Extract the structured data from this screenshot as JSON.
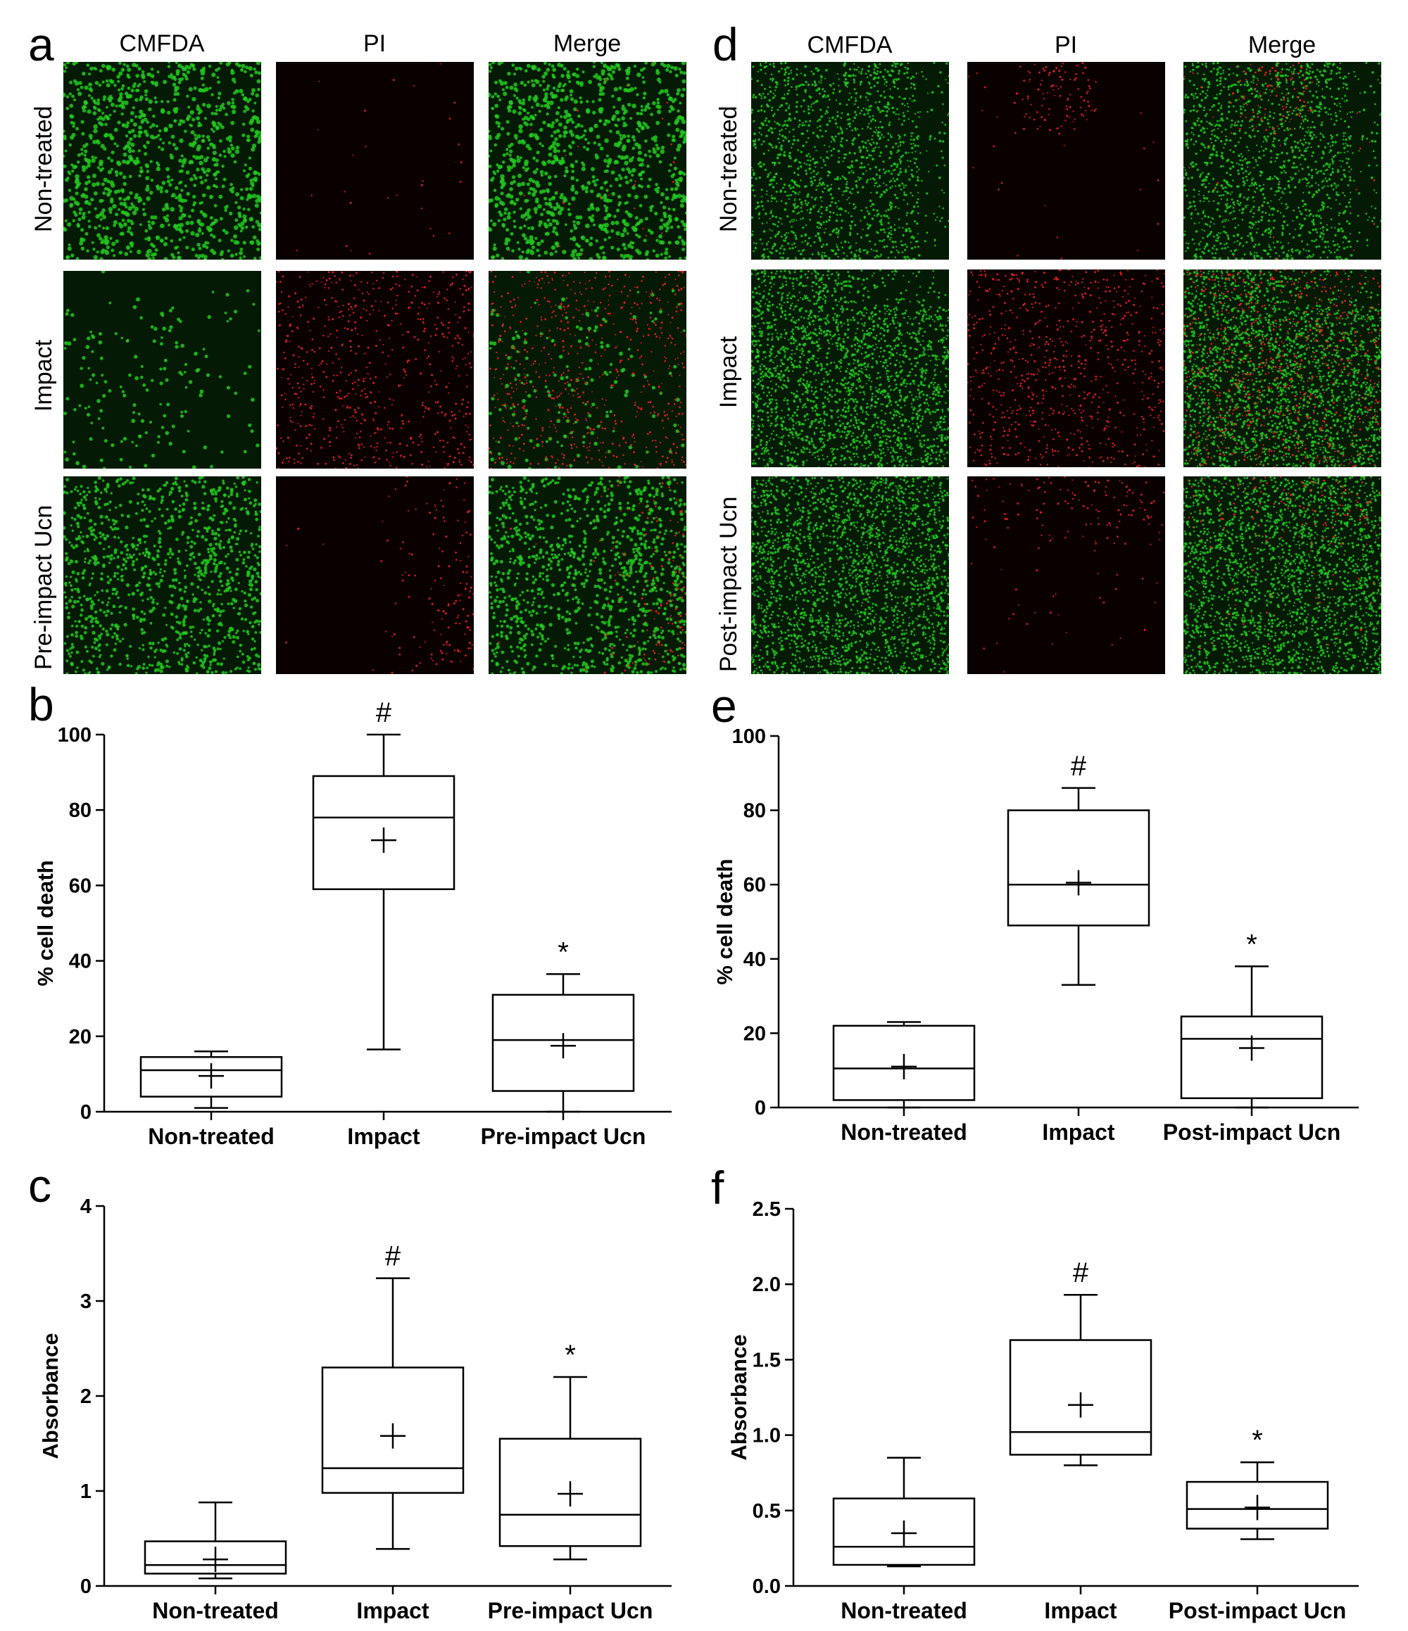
{
  "micrograph_panels": [
    {
      "letter": "a",
      "columns": [
        "CMFDA",
        "PI",
        "Merge"
      ],
      "rows": [
        "Non-treated",
        "Impact",
        "Pre-impact Ucn"
      ]
    },
    {
      "letter": "d",
      "columns": [
        "CMFDA",
        "PI",
        "Merge"
      ],
      "rows": [
        "Non-treated",
        "Impact",
        "Post-impact Ucn"
      ]
    }
  ],
  "colors": {
    "cmfda_green": "#22c81e",
    "pi_red": "#e0201e",
    "background": "#000000",
    "axis": "#000000"
  },
  "chart_data": [
    {
      "panel": "b",
      "type": "box",
      "ylabel": "% cell death",
      "ylim": [
        0,
        100
      ],
      "yticks": [
        "0",
        "20",
        "40",
        "60",
        "80",
        "100"
      ],
      "categories": [
        "Non-treated",
        "Impact",
        "Pre-impact Ucn"
      ],
      "boxes": [
        {
          "whisker_low": 1,
          "q1": 4,
          "median": 11,
          "q3": 14.5,
          "whisker_high": 16,
          "mean": 9.5,
          "sig": ""
        },
        {
          "whisker_low": 16.5,
          "q1": 59,
          "median": 78,
          "q3": 89,
          "whisker_high": 100,
          "mean": 72,
          "sig": "#"
        },
        {
          "whisker_low": 0,
          "q1": 5.5,
          "median": 19,
          "q3": 31,
          "whisker_high": 36.5,
          "mean": 17.5,
          "sig": "*"
        }
      ]
    },
    {
      "panel": "c",
      "type": "box",
      "ylabel": "Absorbance",
      "ylim": [
        0,
        4
      ],
      "yticks": [
        "0",
        "1",
        "2",
        "3",
        "4"
      ],
      "categories": [
        "Non-treated",
        "Impact",
        "Pre-impact Ucn"
      ],
      "boxes": [
        {
          "whisker_low": 0.08,
          "q1": 0.13,
          "median": 0.22,
          "q3": 0.47,
          "whisker_high": 0.88,
          "mean": 0.28,
          "sig": ""
        },
        {
          "whisker_low": 0.39,
          "q1": 0.98,
          "median": 1.24,
          "q3": 2.3,
          "whisker_high": 3.24,
          "mean": 1.58,
          "sig": "#"
        },
        {
          "whisker_low": 0.28,
          "q1": 0.42,
          "median": 0.75,
          "q3": 1.55,
          "whisker_high": 2.2,
          "mean": 0.97,
          "sig": "*"
        }
      ]
    },
    {
      "panel": "e",
      "type": "box",
      "ylabel": "% cell death",
      "ylim": [
        0,
        100
      ],
      "yticks": [
        "0",
        "20",
        "40",
        "60",
        "80",
        "100"
      ],
      "categories": [
        "Non-treated",
        "Impact",
        "Post-impact Ucn"
      ],
      "boxes": [
        {
          "whisker_low": 0,
          "q1": 2,
          "median": 10.5,
          "q3": 22,
          "whisker_high": 23,
          "mean": 11,
          "sig": ""
        },
        {
          "whisker_low": 33,
          "q1": 49,
          "median": 60,
          "q3": 80,
          "whisker_high": 86,
          "mean": 60.5,
          "sig": "#"
        },
        {
          "whisker_low": 0,
          "q1": 2.5,
          "median": 18.5,
          "q3": 24.5,
          "whisker_high": 38,
          "mean": 16,
          "sig": "*"
        }
      ]
    },
    {
      "panel": "f",
      "type": "box",
      "ylabel": "Absorbance",
      "ylim": [
        0,
        2.5
      ],
      "yticks": [
        "0.0",
        "0.5",
        "1.0",
        "1.5",
        "2.0",
        "2.5"
      ],
      "categories": [
        "Non-treated",
        "Impact",
        "Post-impact Ucn"
      ],
      "boxes": [
        {
          "whisker_low": 0.13,
          "q1": 0.14,
          "median": 0.26,
          "q3": 0.58,
          "whisker_high": 0.85,
          "mean": 0.35,
          "sig": ""
        },
        {
          "whisker_low": 0.8,
          "q1": 0.87,
          "median": 1.02,
          "q3": 1.63,
          "whisker_high": 1.93,
          "mean": 1.2,
          "sig": "#"
        },
        {
          "whisker_low": 0.31,
          "q1": 0.38,
          "median": 0.51,
          "q3": 0.69,
          "whisker_high": 0.82,
          "mean": 0.52,
          "sig": "*"
        }
      ]
    }
  ]
}
